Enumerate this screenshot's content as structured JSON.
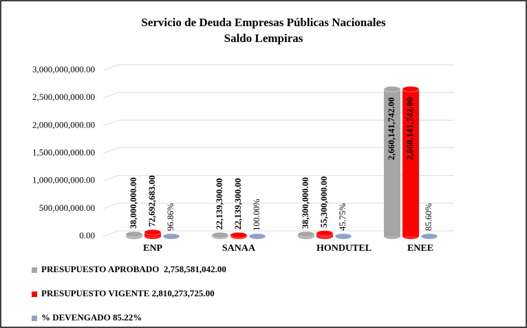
{
  "chart_data": {
    "type": "bar",
    "title": "Servicio de Deuda Empresas Públicas Nacionales",
    "subtitle": "Saldo Lempiras",
    "categories": [
      "ENP",
      "SANAA",
      "HONDUTEL",
      "ENEE"
    ],
    "series": [
      {
        "name": "PRESUPUESTO APROBADO  2,758,581,042.00",
        "color": "#a6a6a6",
        "values": [
          38000000,
          22139300,
          38300000,
          2660141742
        ],
        "value_labels": [
          "38,000,000.00",
          "22,139,300.00",
          "38,300,000.00",
          "2,660,141,742.00"
        ]
      },
      {
        "name": "PRESUPUESTO VIGENTE 2,810,273,725.00",
        "color": "#ff0000",
        "values": [
          72692683,
          22139300,
          55300000,
          2660141742
        ],
        "value_labels": [
          "72,692,683.00",
          "22,139,300.00",
          "55,300,000.00",
          "2,660,141,742.00"
        ]
      },
      {
        "name": "% DEVENGADO 85.22%",
        "color": "#8fa3c8",
        "values": [
          96.86,
          100,
          45.75,
          85.6
        ],
        "value_labels": [
          "96.86%",
          "100.00%",
          "45.75%",
          "85.60%"
        ]
      }
    ],
    "ylim": [
      0,
      3000000000
    ],
    "yticks": [
      {
        "value": 0,
        "label": "0.00"
      },
      {
        "value": 500000000,
        "label": "500,000,000.00"
      },
      {
        "value": 1000000000,
        "label": "1,000,000,000.00"
      },
      {
        "value": 1500000000,
        "label": "1,500,000,000.00"
      },
      {
        "value": 2000000000,
        "label": "2,000,000,000.00"
      },
      {
        "value": 2500000000,
        "label": "2,500,000,000.00"
      },
      {
        "value": 3000000000,
        "label": "3,000,000,000.00"
      }
    ],
    "grid": true
  }
}
